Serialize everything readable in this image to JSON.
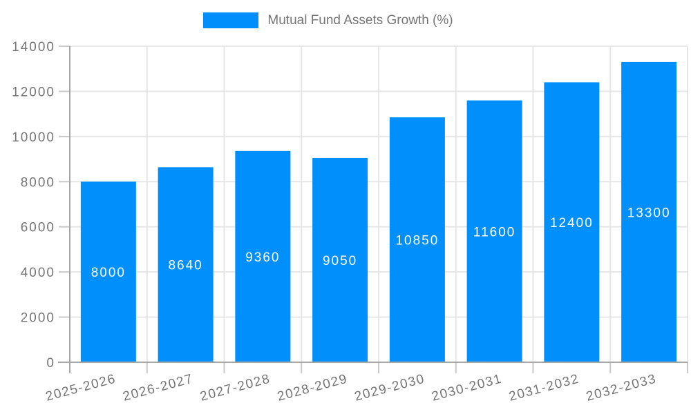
{
  "chart_data": {
    "type": "bar",
    "title": "",
    "categories": [
      "2025-2026",
      "2026-2027",
      "2027-2028",
      "2028-2029",
      "2029-2030",
      "2030-2031",
      "2031-2032",
      "2032-2033"
    ],
    "series": [
      {
        "name": "Mutual Fund Assets Growth (%)",
        "values": [
          8000,
          8640,
          9360,
          9050,
          10850,
          11600,
          12400,
          13300
        ]
      }
    ],
    "bar_value_labels": [
      "8000",
      "8640",
      "9360",
      "9050",
      "10850",
      "11600",
      "12400",
      "13300"
    ],
    "xlabel": "",
    "ylabel": "",
    "ylim": [
      0,
      14000
    ],
    "yticks": [
      0,
      2000,
      4000,
      6000,
      8000,
      10000,
      12000,
      14000
    ],
    "ytick_labels": [
      "0",
      "2000",
      "4000",
      "6000",
      "8000",
      "10000",
      "12000",
      "14000"
    ],
    "grid": true,
    "legend_position": "top",
    "colors": {
      "bar": "#008FFB",
      "grid_line": "#e6e6e6",
      "axis_line": "#a6a6a6",
      "tick_mark": "#c9c9c9",
      "axis_label_text": "#757575",
      "legend_text": "#757575",
      "bar_value_text": "#ffffff",
      "background": "#ffffff"
    }
  }
}
